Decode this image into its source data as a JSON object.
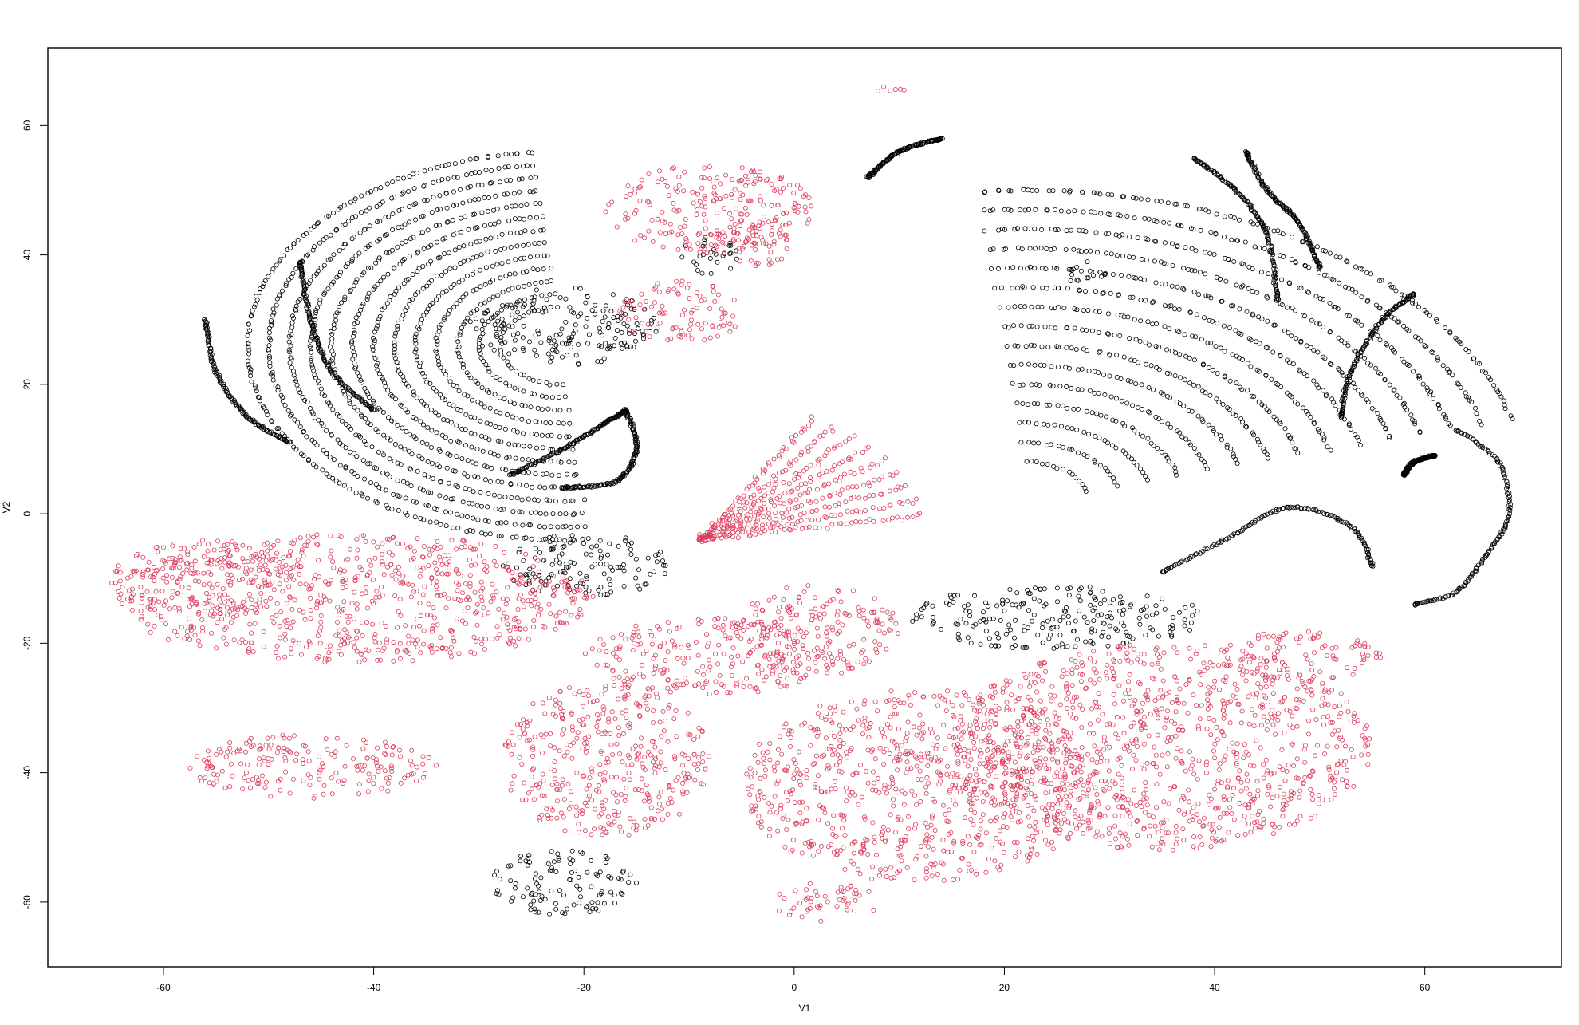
{
  "chart_data": {
    "type": "scatter",
    "title": "",
    "xlabel": "V1",
    "ylabel": "V2",
    "xlim": [
      -71,
      73
    ],
    "ylim": [
      -70,
      72
    ],
    "xticks": [
      -60,
      -40,
      -20,
      0,
      20,
      40,
      60
    ],
    "yticks": [
      -60,
      -40,
      -20,
      0,
      20,
      40,
      60
    ],
    "xtick_labels": [
      "-60",
      "-40",
      "-20",
      "0",
      "20",
      "40",
      "60"
    ],
    "ytick_labels": [
      "-60",
      "-40",
      "-20",
      "0",
      "20",
      "40",
      "60"
    ],
    "grid": false,
    "legend": "none",
    "series": [
      {
        "color": "#000000",
        "clusters": [
          {
            "kind": "arcs",
            "center": [
              -22,
              26
            ],
            "radii": [
              6,
              8,
              10,
              12,
              14,
              16,
              18,
              20,
              22,
              24,
              26,
              28,
              30
            ],
            "angle_range": [
              95,
              275
            ]
          },
          {
            "kind": "arcs",
            "center": [
              22,
              2
            ],
            "radii": [
              6,
              9,
              12,
              15,
              18,
              21,
              24,
              27,
              30,
              33,
              36,
              39,
              42,
              45,
              48
            ],
            "angle_range": [
              15,
              95
            ]
          },
          {
            "kind": "blob",
            "center": [
              -22,
              29
            ],
            "size": [
              9,
              6
            ]
          },
          {
            "kind": "blob",
            "center": [
              -20,
              -8
            ],
            "size": [
              8,
              5
            ]
          },
          {
            "kind": "blob",
            "center": [
              25,
              -16
            ],
            "size": [
              14,
              5
            ]
          },
          {
            "kind": "blob",
            "center": [
              -22,
              -57
            ],
            "size": [
              7,
              5
            ]
          },
          {
            "kind": "blob",
            "center": [
              -8,
              40
            ],
            "size": [
              3,
              3
            ]
          },
          {
            "kind": "blob",
            "center": [
              28,
              37
            ],
            "size": [
              2,
              2
            ]
          },
          {
            "kind": "curve",
            "points": [
              [
                -56,
                30
              ],
              [
                -55,
                22
              ],
              [
                -52,
                15
              ],
              [
                -48,
                11
              ]
            ]
          },
          {
            "kind": "curve",
            "points": [
              [
                -47,
                39
              ],
              [
                -46,
                30
              ],
              [
                -44,
                22
              ],
              [
                -40,
                16
              ]
            ]
          },
          {
            "kind": "curve",
            "points": [
              [
                -27,
                6
              ],
              [
                -22,
                10
              ],
              [
                -18,
                14
              ],
              [
                -16,
                16
              ]
            ]
          },
          {
            "kind": "curve",
            "points": [
              [
                -22,
                4
              ],
              [
                -17,
                5
              ],
              [
                -15,
                10
              ],
              [
                -16,
                16
              ]
            ]
          },
          {
            "kind": "curve",
            "points": [
              [
                38,
                55
              ],
              [
                42,
                50
              ],
              [
                45,
                43
              ],
              [
                46,
                33
              ]
            ]
          },
          {
            "kind": "curve",
            "points": [
              [
                43,
                56
              ],
              [
                45,
                50
              ],
              [
                48,
                45
              ],
              [
                50,
                38
              ]
            ]
          },
          {
            "kind": "curve",
            "points": [
              [
                52,
                15
              ],
              [
                53,
                22
              ],
              [
                56,
                30
              ],
              [
                59,
                34
              ]
            ]
          },
          {
            "kind": "curve",
            "points": [
              [
                35,
                -9
              ],
              [
                41,
                -4
              ],
              [
                47,
                1
              ],
              [
                53,
                -2
              ],
              [
                55,
                -8
              ]
            ]
          },
          {
            "kind": "curve",
            "points": [
              [
                63,
                13
              ],
              [
                67,
                8
              ],
              [
                68,
                0
              ],
              [
                66,
                -6
              ],
              [
                63,
                -12
              ],
              [
                59,
                -14
              ]
            ]
          },
          {
            "kind": "curve",
            "points": [
              [
                7,
                52
              ],
              [
                10,
                56
              ],
              [
                14,
                58
              ]
            ]
          },
          {
            "kind": "curve",
            "points": [
              [
                58,
                6
              ],
              [
                59,
                8
              ],
              [
                61,
                9
              ]
            ]
          }
        ]
      },
      {
        "color": "#dc3c5a",
        "clusters": [
          {
            "kind": "blob",
            "center": [
              -42,
              -13
            ],
            "size": [
              23,
              10
            ]
          },
          {
            "kind": "blob",
            "center": [
              -56,
              -10
            ],
            "size": [
              9,
              6
            ]
          },
          {
            "kind": "blob",
            "center": [
              -46,
              -39
            ],
            "size": [
              12,
              5
            ]
          },
          {
            "kind": "blob",
            "center": [
              -18,
              -38
            ],
            "size": [
              10,
              12
            ]
          },
          {
            "kind": "blob",
            "center": [
              -8,
              -22
            ],
            "size": [
              12,
              6
            ]
          },
          {
            "kind": "blob",
            "center": [
              2,
              -18
            ],
            "size": [
              8,
              7
            ]
          },
          {
            "kind": "blob",
            "center": [
              12,
              -42
            ],
            "size": [
              17,
              15
            ]
          },
          {
            "kind": "blob",
            "center": [
              35,
              -36
            ],
            "size": [
              20,
              16
            ]
          },
          {
            "kind": "blob",
            "center": [
              48,
              -22
            ],
            "size": [
              8,
              4
            ]
          },
          {
            "kind": "blob",
            "center": [
              -11,
              31
            ],
            "size": [
              6,
              5
            ]
          },
          {
            "kind": "blob",
            "center": [
              -8,
              47
            ],
            "size": [
              10,
              7
            ]
          },
          {
            "kind": "blob",
            "center": [
              -4,
              42
            ],
            "size": [
              4,
              4
            ]
          },
          {
            "kind": "blob",
            "center": [
              3,
              -60
            ],
            "size": [
              5,
              3
            ]
          },
          {
            "kind": "fan",
            "origin": [
              -9,
              -4
            ],
            "radius": 22,
            "angle_range": [
              10,
              60
            ]
          },
          {
            "kind": "blob",
            "center": [
              9,
              66
            ],
            "size": [
              2,
              1
            ]
          }
        ]
      }
    ]
  }
}
